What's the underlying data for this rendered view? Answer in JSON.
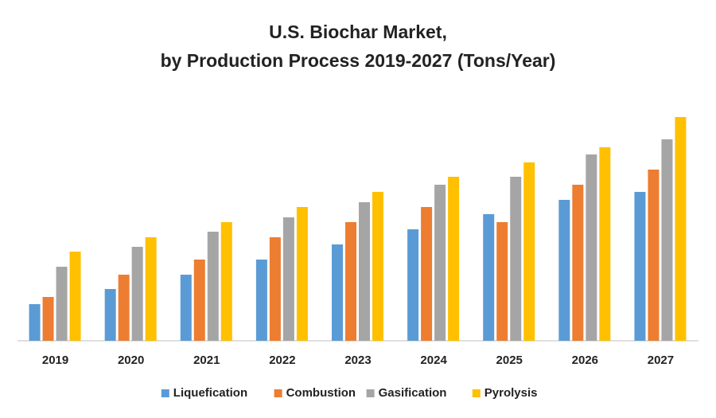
{
  "chart_data": {
    "type": "bar",
    "title": [
      "U.S. Biochar Market,",
      "by Production Process 2019-2027 (Tons/Year)"
    ],
    "categories": [
      "2019",
      "2020",
      "2021",
      "2022",
      "2023",
      "2024",
      "2025",
      "2026",
      "2027"
    ],
    "series": [
      {
        "name": "Liquefication",
        "color": "#5b9bd5",
        "values": [
          46,
          65,
          83,
          102,
          121,
          140,
          159,
          177,
          187
        ]
      },
      {
        "name": "Combustion",
        "color": "#ed7d31",
        "values": [
          55,
          83,
          102,
          130,
          149,
          168,
          149,
          196,
          215
        ]
      },
      {
        "name": "Gasification",
        "color": "#a5a5a5",
        "values": [
          93,
          118,
          137,
          155,
          174,
          196,
          206,
          234,
          253
        ]
      },
      {
        "name": "Pyrolysis",
        "color": "#ffc000",
        "values": [
          112,
          130,
          149,
          168,
          187,
          206,
          224,
          243,
          281
        ]
      }
    ],
    "ylim": [
      0,
      300
    ],
    "legend": "bottom"
  }
}
